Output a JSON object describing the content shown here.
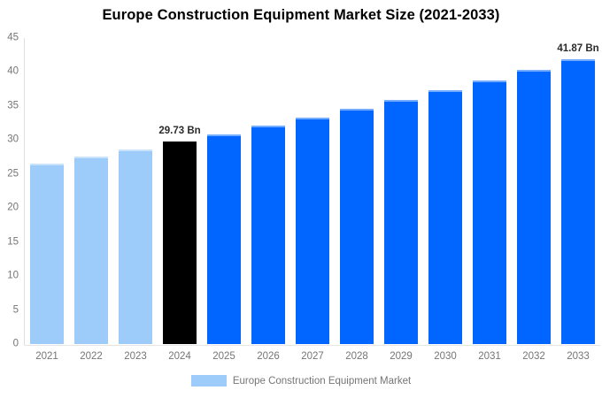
{
  "title": "Europe Construction Equipment Market Size (2021-2033)",
  "colors": {
    "light_blue": "#9DCBFA",
    "blue": "#0066FF",
    "black": "#000000",
    "axis_label": "#757575",
    "axis_line": "#DEDEDE",
    "annotation_text": "#2B2B2B",
    "title_text": "#000000"
  },
  "legend": {
    "label": "Europe Construction Equipment Market",
    "swatch_color": "#9DCBFA"
  },
  "chart_data": {
    "type": "bar",
    "title": "Europe Construction Equipment Market Size (2021-2033)",
    "categories": [
      "2021",
      "2022",
      "2023",
      "2024",
      "2025",
      "2026",
      "2027",
      "2028",
      "2029",
      "2030",
      "2031",
      "2032",
      "2033"
    ],
    "values": [
      26.52,
      27.55,
      28.62,
      29.73,
      30.88,
      32.08,
      33.32,
      34.62,
      35.96,
      37.36,
      38.81,
      40.31,
      41.87
    ],
    "unit": "Bn",
    "bar_colors": [
      "#9DCBFA",
      "#9DCBFA",
      "#9DCBFA",
      "#000000",
      "#0066FF",
      "#0066FF",
      "#0066FF",
      "#0066FF",
      "#0066FF",
      "#0066FF",
      "#0066FF",
      "#0066FF",
      "#0066FF"
    ],
    "annotations": [
      {
        "index": 3,
        "text": "29.73 Bn"
      },
      {
        "index": 12,
        "text": "41.87 Bn"
      }
    ],
    "xlabel": "",
    "ylabel": "",
    "ylim": [
      0,
      45
    ],
    "yticks": [
      0,
      5,
      10,
      15,
      20,
      25,
      30,
      35,
      40,
      45
    ],
    "grid": false,
    "legend_position": "bottom"
  }
}
